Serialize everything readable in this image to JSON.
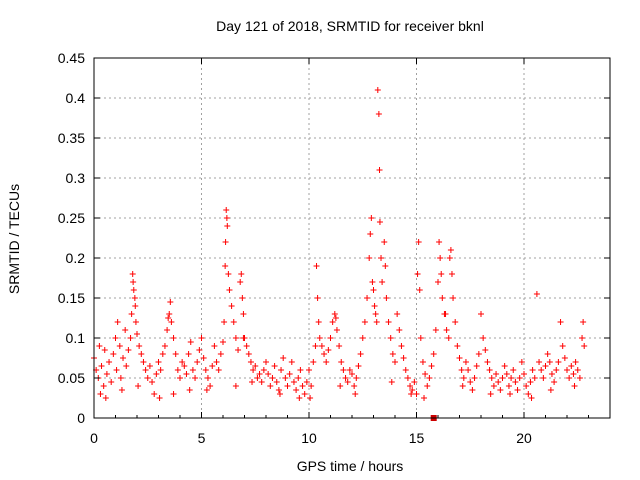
{
  "chart_data": {
    "type": "scatter",
    "title": "Day 121 of 2018, SRMTID for receiver bknl",
    "xlabel": "GPS time / hours",
    "ylabel": "SRMTID / TECUs",
    "xlim": [
      0,
      24
    ],
    "ylim": [
      0,
      0.45
    ],
    "grid": true,
    "marker": "+",
    "x_ticks": [
      0,
      5,
      10,
      15,
      20
    ],
    "x_tick_labels": [
      "0",
      "5",
      "10",
      "15",
      "20"
    ],
    "y_ticks": [
      0,
      0.05,
      0.1,
      0.15,
      0.2,
      0.25,
      0.3,
      0.35,
      0.4,
      0.45
    ],
    "y_tick_labels": [
      "0",
      "0.05",
      "0.1",
      "0.15",
      "0.2",
      "0.25",
      "0.3",
      "0.35",
      "0.4",
      "0.45"
    ],
    "series": [
      {
        "name": "SRMTID",
        "color": "#ff0000",
        "points": [
          [
            0.0,
            0.075
          ],
          [
            0.1,
            0.06
          ],
          [
            0.2,
            0.05
          ],
          [
            0.25,
            0.09
          ],
          [
            0.35,
            0.065
          ],
          [
            0.45,
            0.04
          ],
          [
            0.5,
            0.085
          ],
          [
            0.6,
            0.055
          ],
          [
            0.7,
            0.07
          ],
          [
            0.8,
            0.045
          ],
          [
            0.9,
            0.08
          ],
          [
            1.0,
            0.1
          ],
          [
            1.05,
            0.06
          ],
          [
            1.1,
            0.12
          ],
          [
            1.2,
            0.09
          ],
          [
            1.25,
            0.05
          ],
          [
            1.35,
            0.075
          ],
          [
            1.45,
            0.11
          ],
          [
            1.5,
            0.065
          ],
          [
            1.6,
            0.085
          ],
          [
            1.7,
            0.1
          ],
          [
            1.75,
            0.13
          ],
          [
            1.8,
            0.18
          ],
          [
            1.82,
            0.17
          ],
          [
            1.85,
            0.16
          ],
          [
            1.9,
            0.15
          ],
          [
            1.92,
            0.14
          ],
          [
            1.95,
            0.12
          ],
          [
            2.0,
            0.105
          ],
          [
            2.1,
            0.09
          ],
          [
            2.2,
            0.08
          ],
          [
            2.3,
            0.07
          ],
          [
            2.4,
            0.06
          ],
          [
            2.5,
            0.05
          ],
          [
            2.6,
            0.065
          ],
          [
            2.7,
            0.045
          ],
          [
            2.8,
            0.03
          ],
          [
            2.9,
            0.055
          ],
          [
            3.0,
            0.07
          ],
          [
            3.05,
            0.025
          ],
          [
            3.1,
            0.06
          ],
          [
            3.2,
            0.08
          ],
          [
            3.3,
            0.09
          ],
          [
            3.4,
            0.11
          ],
          [
            3.45,
            0.125
          ],
          [
            3.5,
            0.13
          ],
          [
            3.55,
            0.145
          ],
          [
            3.6,
            0.12
          ],
          [
            3.7,
            0.1
          ],
          [
            3.8,
            0.08
          ],
          [
            3.9,
            0.06
          ],
          [
            4.0,
            0.05
          ],
          [
            4.1,
            0.07
          ],
          [
            4.2,
            0.065
          ],
          [
            4.3,
            0.055
          ],
          [
            4.4,
            0.08
          ],
          [
            4.5,
            0.095
          ],
          [
            4.6,
            0.06
          ],
          [
            4.7,
            0.05
          ],
          [
            4.8,
            0.07
          ],
          [
            4.9,
            0.085
          ],
          [
            5.0,
            0.1
          ],
          [
            5.1,
            0.075
          ],
          [
            5.2,
            0.06
          ],
          [
            5.3,
            0.05
          ],
          [
            5.4,
            0.04
          ],
          [
            5.5,
            0.065
          ],
          [
            5.6,
            0.09
          ],
          [
            5.7,
            0.07
          ],
          [
            5.8,
            0.06
          ],
          [
            5.9,
            0.08
          ],
          [
            6.0,
            0.095
          ],
          [
            6.05,
            0.12
          ],
          [
            6.1,
            0.19
          ],
          [
            6.12,
            0.22
          ],
          [
            6.15,
            0.26
          ],
          [
            6.18,
            0.25
          ],
          [
            6.2,
            0.24
          ],
          [
            6.25,
            0.18
          ],
          [
            6.3,
            0.16
          ],
          [
            6.4,
            0.14
          ],
          [
            6.5,
            0.12
          ],
          [
            6.6,
            0.1
          ],
          [
            6.7,
            0.085
          ],
          [
            6.8,
            0.17
          ],
          [
            6.85,
            0.18
          ],
          [
            6.9,
            0.15
          ],
          [
            6.95,
            0.13
          ],
          [
            7.0,
            0.1
          ],
          [
            7.1,
            0.09
          ],
          [
            7.2,
            0.08
          ],
          [
            7.3,
            0.07
          ],
          [
            7.4,
            0.06
          ],
          [
            7.5,
            0.065
          ],
          [
            7.6,
            0.05
          ],
          [
            7.7,
            0.055
          ],
          [
            7.8,
            0.045
          ],
          [
            7.9,
            0.06
          ],
          [
            8.0,
            0.07
          ],
          [
            8.1,
            0.055
          ],
          [
            8.2,
            0.04
          ],
          [
            8.3,
            0.05
          ],
          [
            8.4,
            0.065
          ],
          [
            8.5,
            0.045
          ],
          [
            8.6,
            0.035
          ],
          [
            8.7,
            0.06
          ],
          [
            8.8,
            0.075
          ],
          [
            8.9,
            0.05
          ],
          [
            9.0,
            0.04
          ],
          [
            9.1,
            0.055
          ],
          [
            9.2,
            0.07
          ],
          [
            9.3,
            0.045
          ],
          [
            9.4,
            0.035
          ],
          [
            9.5,
            0.05
          ],
          [
            9.6,
            0.06
          ],
          [
            9.7,
            0.04
          ],
          [
            9.8,
            0.03
          ],
          [
            9.9,
            0.045
          ],
          [
            10.0,
            0.06
          ],
          [
            10.1,
            0.04
          ],
          [
            10.2,
            0.07
          ],
          [
            10.3,
            0.09
          ],
          [
            10.35,
            0.19
          ],
          [
            10.4,
            0.15
          ],
          [
            10.45,
            0.12
          ],
          [
            10.5,
            0.1
          ],
          [
            10.6,
            0.09
          ],
          [
            10.7,
            0.08
          ],
          [
            10.8,
            0.07
          ],
          [
            10.9,
            0.085
          ],
          [
            11.0,
            0.1
          ],
          [
            11.1,
            0.12
          ],
          [
            11.2,
            0.13
          ],
          [
            11.3,
            0.11
          ],
          [
            11.4,
            0.09
          ],
          [
            11.5,
            0.07
          ],
          [
            11.6,
            0.06
          ],
          [
            11.7,
            0.05
          ],
          [
            11.8,
            0.045
          ],
          [
            11.9,
            0.06
          ],
          [
            12.0,
            0.055
          ],
          [
            12.1,
            0.04
          ],
          [
            12.2,
            0.05
          ],
          [
            12.3,
            0.065
          ],
          [
            12.4,
            0.08
          ],
          [
            12.5,
            0.1
          ],
          [
            12.6,
            0.12
          ],
          [
            12.7,
            0.15
          ],
          [
            12.8,
            0.2
          ],
          [
            12.85,
            0.23
          ],
          [
            12.9,
            0.25
          ],
          [
            12.95,
            0.17
          ],
          [
            13.0,
            0.16
          ],
          [
            13.05,
            0.14
          ],
          [
            13.1,
            0.13
          ],
          [
            13.15,
            0.12
          ],
          [
            13.2,
            0.41
          ],
          [
            13.25,
            0.38
          ],
          [
            13.28,
            0.31
          ],
          [
            13.3,
            0.245
          ],
          [
            13.35,
            0.2
          ],
          [
            13.4,
            0.17
          ],
          [
            13.5,
            0.22
          ],
          [
            13.55,
            0.19
          ],
          [
            13.6,
            0.15
          ],
          [
            13.7,
            0.12
          ],
          [
            13.8,
            0.1
          ],
          [
            13.9,
            0.08
          ],
          [
            14.0,
            0.07
          ],
          [
            14.1,
            0.13
          ],
          [
            14.2,
            0.11
          ],
          [
            14.3,
            0.09
          ],
          [
            14.4,
            0.075
          ],
          [
            14.5,
            0.06
          ],
          [
            14.6,
            0.05
          ],
          [
            14.7,
            0.04
          ],
          [
            14.8,
            0.035
          ],
          [
            14.9,
            0.045
          ],
          [
            15.0,
            0.03
          ],
          [
            15.05,
            0.18
          ],
          [
            15.1,
            0.22
          ],
          [
            15.15,
            0.16
          ],
          [
            15.2,
            0.1
          ],
          [
            15.3,
            0.07
          ],
          [
            15.4,
            0.055
          ],
          [
            15.5,
            0.04
          ],
          [
            15.6,
            0.05
          ],
          [
            15.7,
            0.065
          ],
          [
            15.8,
            0.08
          ],
          [
            15.9,
            0.11
          ],
          [
            16.0,
            0.17
          ],
          [
            16.05,
            0.22
          ],
          [
            16.1,
            0.2
          ],
          [
            16.15,
            0.18
          ],
          [
            16.2,
            0.15
          ],
          [
            16.3,
            0.13
          ],
          [
            16.4,
            0.11
          ],
          [
            16.5,
            0.1
          ],
          [
            16.55,
            0.2
          ],
          [
            16.6,
            0.21
          ],
          [
            16.65,
            0.18
          ],
          [
            16.7,
            0.15
          ],
          [
            16.8,
            0.12
          ],
          [
            16.9,
            0.09
          ],
          [
            17.0,
            0.075
          ],
          [
            17.1,
            0.06
          ],
          [
            17.2,
            0.05
          ],
          [
            17.3,
            0.07
          ],
          [
            17.4,
            0.06
          ],
          [
            17.5,
            0.045
          ],
          [
            17.6,
            0.035
          ],
          [
            17.7,
            0.05
          ],
          [
            17.8,
            0.065
          ],
          [
            17.9,
            0.08
          ],
          [
            18.0,
            0.13
          ],
          [
            18.1,
            0.1
          ],
          [
            18.2,
            0.085
          ],
          [
            18.3,
            0.07
          ],
          [
            18.4,
            0.06
          ],
          [
            18.5,
            0.05
          ],
          [
            18.6,
            0.04
          ],
          [
            18.7,
            0.055
          ],
          [
            18.8,
            0.045
          ],
          [
            18.9,
            0.035
          ],
          [
            19.0,
            0.05
          ],
          [
            19.1,
            0.065
          ],
          [
            19.2,
            0.055
          ],
          [
            19.3,
            0.04
          ],
          [
            19.4,
            0.05
          ],
          [
            19.5,
            0.06
          ],
          [
            19.6,
            0.045
          ],
          [
            19.7,
            0.035
          ],
          [
            19.8,
            0.05
          ],
          [
            19.9,
            0.07
          ],
          [
            20.0,
            0.055
          ],
          [
            20.1,
            0.04
          ],
          [
            20.2,
            0.03
          ],
          [
            20.3,
            0.045
          ],
          [
            20.4,
            0.06
          ],
          [
            20.5,
            0.05
          ],
          [
            20.6,
            0.155
          ],
          [
            20.7,
            0.07
          ],
          [
            20.8,
            0.06
          ],
          [
            20.9,
            0.05
          ],
          [
            21.0,
            0.065
          ],
          [
            21.1,
            0.08
          ],
          [
            21.2,
            0.07
          ],
          [
            21.3,
            0.055
          ],
          [
            21.4,
            0.045
          ],
          [
            21.5,
            0.06
          ],
          [
            21.6,
            0.07
          ],
          [
            21.7,
            0.12
          ],
          [
            21.8,
            0.09
          ],
          [
            21.9,
            0.075
          ],
          [
            22.0,
            0.06
          ],
          [
            22.1,
            0.05
          ],
          [
            22.2,
            0.065
          ],
          [
            22.3,
            0.055
          ],
          [
            22.4,
            0.07
          ],
          [
            22.5,
            0.06
          ],
          [
            22.6,
            0.05
          ],
          [
            22.7,
            0.1
          ],
          [
            22.75,
            0.12
          ],
          [
            22.8,
            0.09
          ],
          [
            0.3,
            0.03
          ],
          [
            0.55,
            0.025
          ],
          [
            1.3,
            0.035
          ],
          [
            2.05,
            0.04
          ],
          [
            3.7,
            0.03
          ],
          [
            4.45,
            0.035
          ],
          [
            5.25,
            0.035
          ],
          [
            6.6,
            0.04
          ],
          [
            7.35,
            0.045
          ],
          [
            8.65,
            0.03
          ],
          [
            9.55,
            0.025
          ],
          [
            10.05,
            0.025
          ],
          [
            11.45,
            0.04
          ],
          [
            12.15,
            0.03
          ],
          [
            13.85,
            0.045
          ],
          [
            14.75,
            0.03
          ],
          [
            15.35,
            0.025
          ],
          [
            17.15,
            0.04
          ],
          [
            18.45,
            0.03
          ],
          [
            19.35,
            0.03
          ],
          [
            20.35,
            0.025
          ],
          [
            21.25,
            0.035
          ],
          [
            22.35,
            0.04
          ],
          [
            16.35,
            0.13
          ],
          [
            11.25,
            0.125
          ],
          [
            6.95,
            0.1
          ]
        ]
      }
    ],
    "special_markers": [
      {
        "label": "data-gap",
        "x": 15.8,
        "y": 0.0,
        "color": "#cc0000"
      }
    ]
  }
}
